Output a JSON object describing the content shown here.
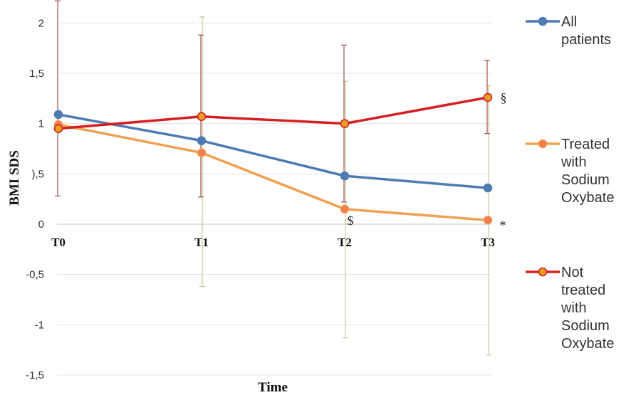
{
  "chart_data": {
    "type": "line",
    "title": "",
    "xlabel": "Time",
    "ylabel": "BMI SDS",
    "categories": [
      "T0",
      "T1",
      "T2",
      "T3"
    ],
    "ylim": [
      -1.5,
      2.2
    ],
    "yticks": [
      -1.5,
      -1,
      -0.5,
      0,
      0.5,
      1,
      1.5,
      2
    ],
    "ytick_labels": [
      "-1,5",
      "-1",
      "-0,5",
      "0",
      "),5",
      "1",
      "1,5",
      "2"
    ],
    "grid": true,
    "legend_position": "right",
    "series": [
      {
        "name": "All patients",
        "name_lines": [
          "All",
          "patients"
        ],
        "values": [
          1.09,
          0.83,
          0.48,
          0.36
        ],
        "color": "#4f7bb5",
        "marker_fill": "#4f7bb5",
        "errors": [
          null,
          null,
          null,
          null
        ]
      },
      {
        "name": "Treated with Sodium Oxybate",
        "name_lines": [
          "Treated",
          "with",
          "Sodium",
          "Oxybate"
        ],
        "values": [
          0.99,
          0.71,
          0.15,
          0.04
        ],
        "color": "#f0a050",
        "marker_fill": "#f47a50",
        "error_color": "#c8c89a",
        "errors": [
          null,
          [
            -0.62,
            2.06
          ],
          [
            -1.13,
            1.42
          ],
          [
            -1.3,
            1.38
          ]
        ]
      },
      {
        "name": "Not treated with Sodium Oxybate",
        "name_lines": [
          "Not",
          "treated",
          "with",
          "Sodium",
          "Oxybate"
        ],
        "values": [
          0.95,
          1.07,
          1.0,
          1.26
        ],
        "color": "#d42020",
        "marker_fill": "#e8a020",
        "error_color": "#a05050",
        "errors": [
          [
            0.28,
            2.22
          ],
          [
            0.27,
            1.88
          ],
          [
            0.22,
            1.78
          ],
          [
            0.9,
            1.63
          ]
        ]
      }
    ],
    "annotations": [
      {
        "text": "§",
        "series": 2,
        "point": 3
      },
      {
        "text": "$",
        "series": 1,
        "point": 2
      },
      {
        "text": "*",
        "series": 1,
        "point": 3
      }
    ]
  }
}
